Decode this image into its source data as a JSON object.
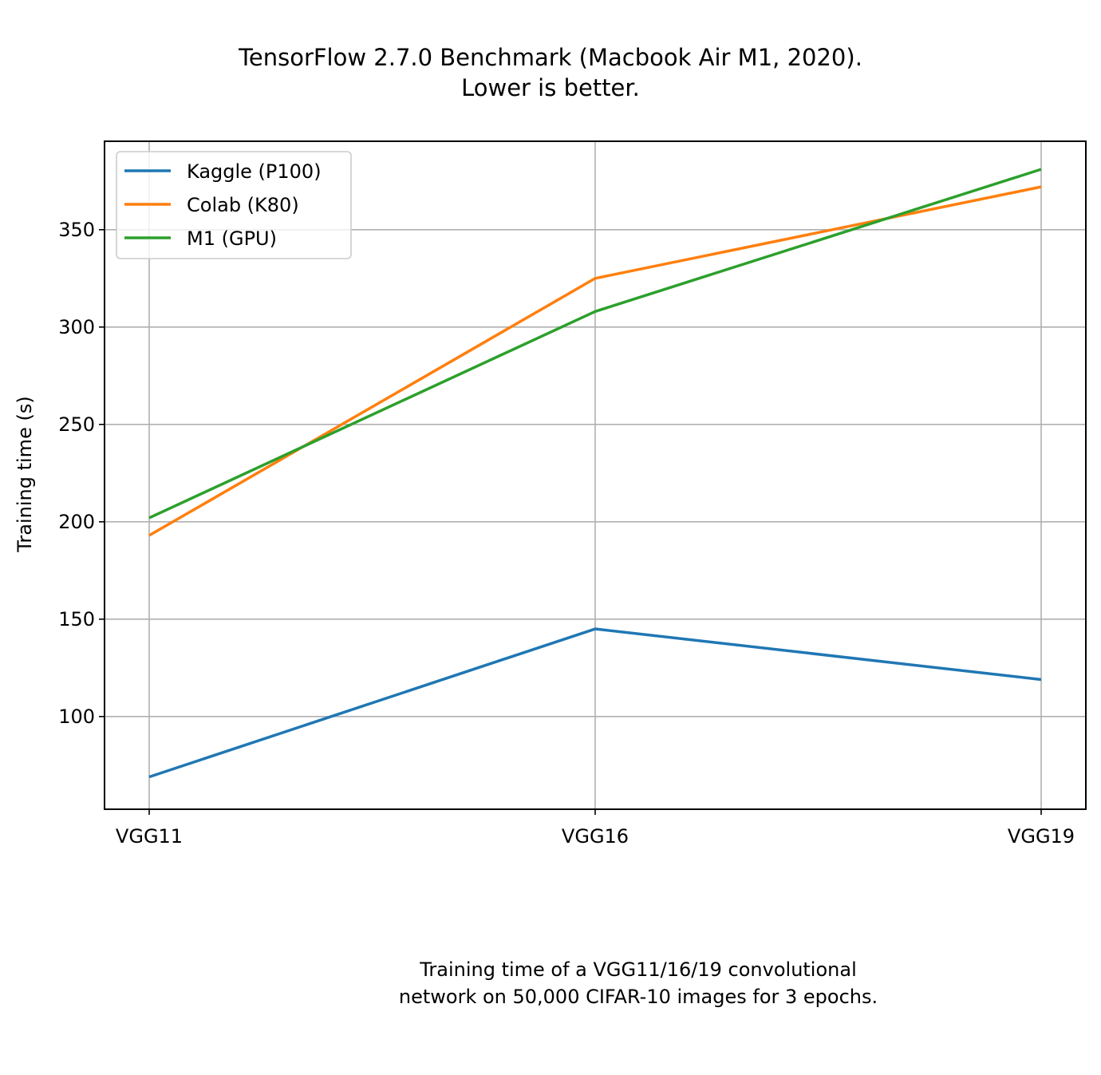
{
  "chart_data": {
    "type": "line",
    "title": "TensorFlow 2.7.0 Benchmark (Macbook Air M1, 2020).",
    "subtitle": "Lower is better.",
    "xlabel": "",
    "ylabel": "Training time (s)",
    "categories": [
      "VGG11",
      "VGG16",
      "VGG19"
    ],
    "series": [
      {
        "name": "Kaggle (P100)",
        "color": "#1f77b4",
        "values": [
          69,
          145,
          119
        ]
      },
      {
        "name": "Colab (K80)",
        "color": "#ff7f0e",
        "values": [
          193,
          325,
          372
        ]
      },
      {
        "name": "M1 (GPU)",
        "color": "#2ca02c",
        "values": [
          202,
          308,
          381
        ]
      }
    ],
    "yticks": [
      100,
      150,
      200,
      250,
      300,
      350
    ],
    "ylim": [
      52.4,
      395.4
    ],
    "grid": true,
    "legend": "top-left"
  },
  "caption_lines": [
    "Training time of a VGG11/16/19 convolutional",
    "network on 50,000 CIFAR-10 images for 3 epochs."
  ]
}
